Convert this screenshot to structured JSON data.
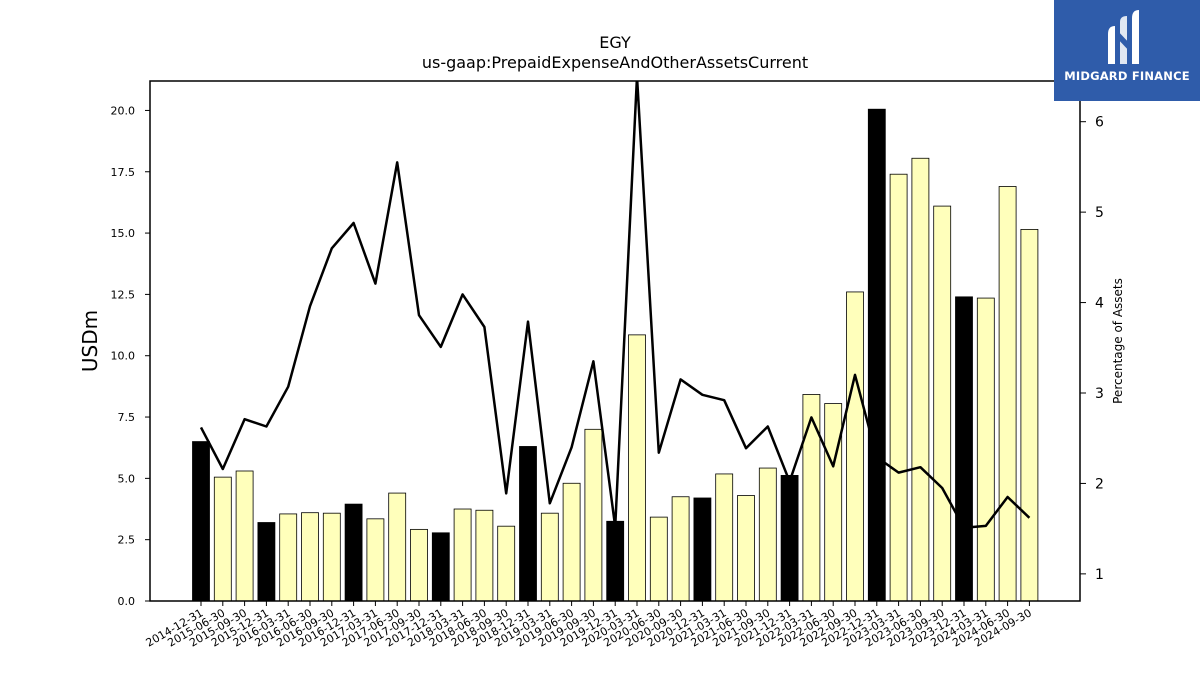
{
  "brand": {
    "name": "MIDGARD FINANCE",
    "icon": "midgard-m-logo-icon",
    "color": "#2f5caa"
  },
  "chart_data": {
    "type": "bar",
    "title": "EGY",
    "subtitle": "us-gaap:PrepaidExpenseAndOtherAssetsCurrent",
    "ylabel": "USDm",
    "y2label": "Percentage of Assets",
    "ylim": [
      0,
      21.2
    ],
    "y2lim": [
      0.7,
      6.45
    ],
    "yticks": [
      "0.0",
      "2.5",
      "5.0",
      "7.5",
      "10.0",
      "12.5",
      "15.0",
      "17.5",
      "20.0"
    ],
    "y2ticks": [
      "1",
      "2",
      "3",
      "4",
      "5",
      "6"
    ],
    "grid": false,
    "categories": [
      "2014-12-31",
      "2015-06-30",
      "2015-09-30",
      "2015-12-31",
      "2016-03-31",
      "2016-06-30",
      "2016-09-30",
      "2016-12-31",
      "2017-03-31",
      "2017-06-30",
      "2017-09-30",
      "2017-12-31",
      "2018-03-31",
      "2018-06-30",
      "2018-09-30",
      "2018-12-31",
      "2019-03-31",
      "2019-06-30",
      "2019-09-30",
      "2019-12-31",
      "2020-03-31",
      "2020-06-30",
      "2020-09-30",
      "2020-12-31",
      "2021-03-31",
      "2021-06-30",
      "2021-09-30",
      "2021-12-31",
      "2022-03-31",
      "2022-06-30",
      "2022-09-30",
      "2022-12-31",
      "2023-03-31",
      "2023-06-30",
      "2023-09-30",
      "2023-12-31",
      "2024-03-31",
      "2024-06-30",
      "2024-09-30"
    ],
    "series": [
      {
        "kind": "bar",
        "axis": "left",
        "values": [
          6.5,
          5.05,
          5.3,
          3.2,
          3.55,
          3.6,
          3.58,
          3.95,
          3.35,
          4.4,
          2.92,
          2.78,
          3.75,
          3.7,
          3.05,
          6.3,
          3.58,
          4.8,
          7.0,
          3.25,
          10.85,
          3.42,
          4.25,
          4.2,
          5.18,
          4.3,
          5.42,
          5.12,
          8.42,
          8.05,
          12.6,
          20.05,
          17.4,
          18.05,
          16.1,
          12.4,
          12.35,
          16.9,
          15.15
        ],
        "year_end": [
          true,
          false,
          false,
          true,
          false,
          false,
          false,
          true,
          false,
          false,
          false,
          true,
          false,
          false,
          false,
          true,
          false,
          false,
          false,
          true,
          false,
          false,
          false,
          true,
          false,
          false,
          false,
          true,
          false,
          false,
          false,
          true,
          false,
          false,
          false,
          true,
          false,
          false,
          false
        ],
        "color_year_end": "#000000",
        "color_quarter": "#ffffbb"
      },
      {
        "kind": "line",
        "axis": "right",
        "color": "#000000",
        "values": [
          2.62,
          2.16,
          2.71,
          2.63,
          3.07,
          3.96,
          4.6,
          4.88,
          4.21,
          5.55,
          3.86,
          3.51,
          4.09,
          3.73,
          1.89,
          3.79,
          1.78,
          2.4,
          3.35,
          1.52,
          6.5,
          2.34,
          3.15,
          2.98,
          2.92,
          2.39,
          2.63,
          2.02,
          2.73,
          2.19,
          3.2,
          2.29,
          2.12,
          2.18,
          1.95,
          1.51,
          1.53,
          1.85,
          1.62
        ]
      }
    ]
  }
}
